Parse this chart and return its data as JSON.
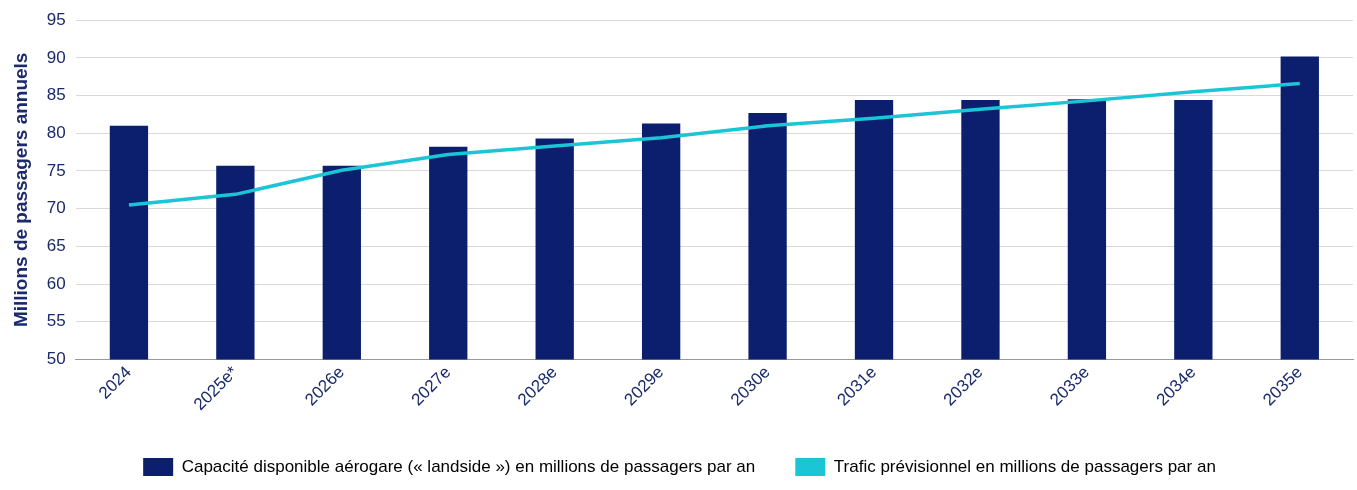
{
  "chart_data": {
    "type": "bar",
    "ylabel": "Millions de passagers annuels",
    "categories": [
      "2024",
      "2025e*",
      "2026e",
      "2027e",
      "2028e",
      "2029e",
      "2030e",
      "2031e",
      "2032e",
      "2033e",
      "2034e",
      "2035e"
    ],
    "series": [
      {
        "name": "Capacité disponible aérogare (« landside ») en millions de passagers par an",
        "color": "#0b1f6e",
        "values": [
          81.0,
          75.7,
          75.7,
          78.2,
          79.3,
          81.3,
          82.7,
          84.4,
          84.4,
          84.5,
          84.4,
          90.2
        ]
      },
      {
        "name": "Trafic prévisionnel en millions de passagers par an",
        "type": "line",
        "color": "#1bc5d5",
        "values": [
          70.5,
          71.9,
          75.1,
          77.2,
          78.3,
          79.4,
          81.0,
          82.0,
          83.2,
          84.3,
          85.5,
          86.6
        ]
      }
    ],
    "ylim": [
      50,
      95
    ],
    "yticks": [
      50,
      55,
      60,
      65,
      70,
      75,
      80,
      85,
      90,
      95
    ],
    "grid": "y",
    "legend": "bottom",
    "marker": "none",
    "line_style": "solid"
  }
}
